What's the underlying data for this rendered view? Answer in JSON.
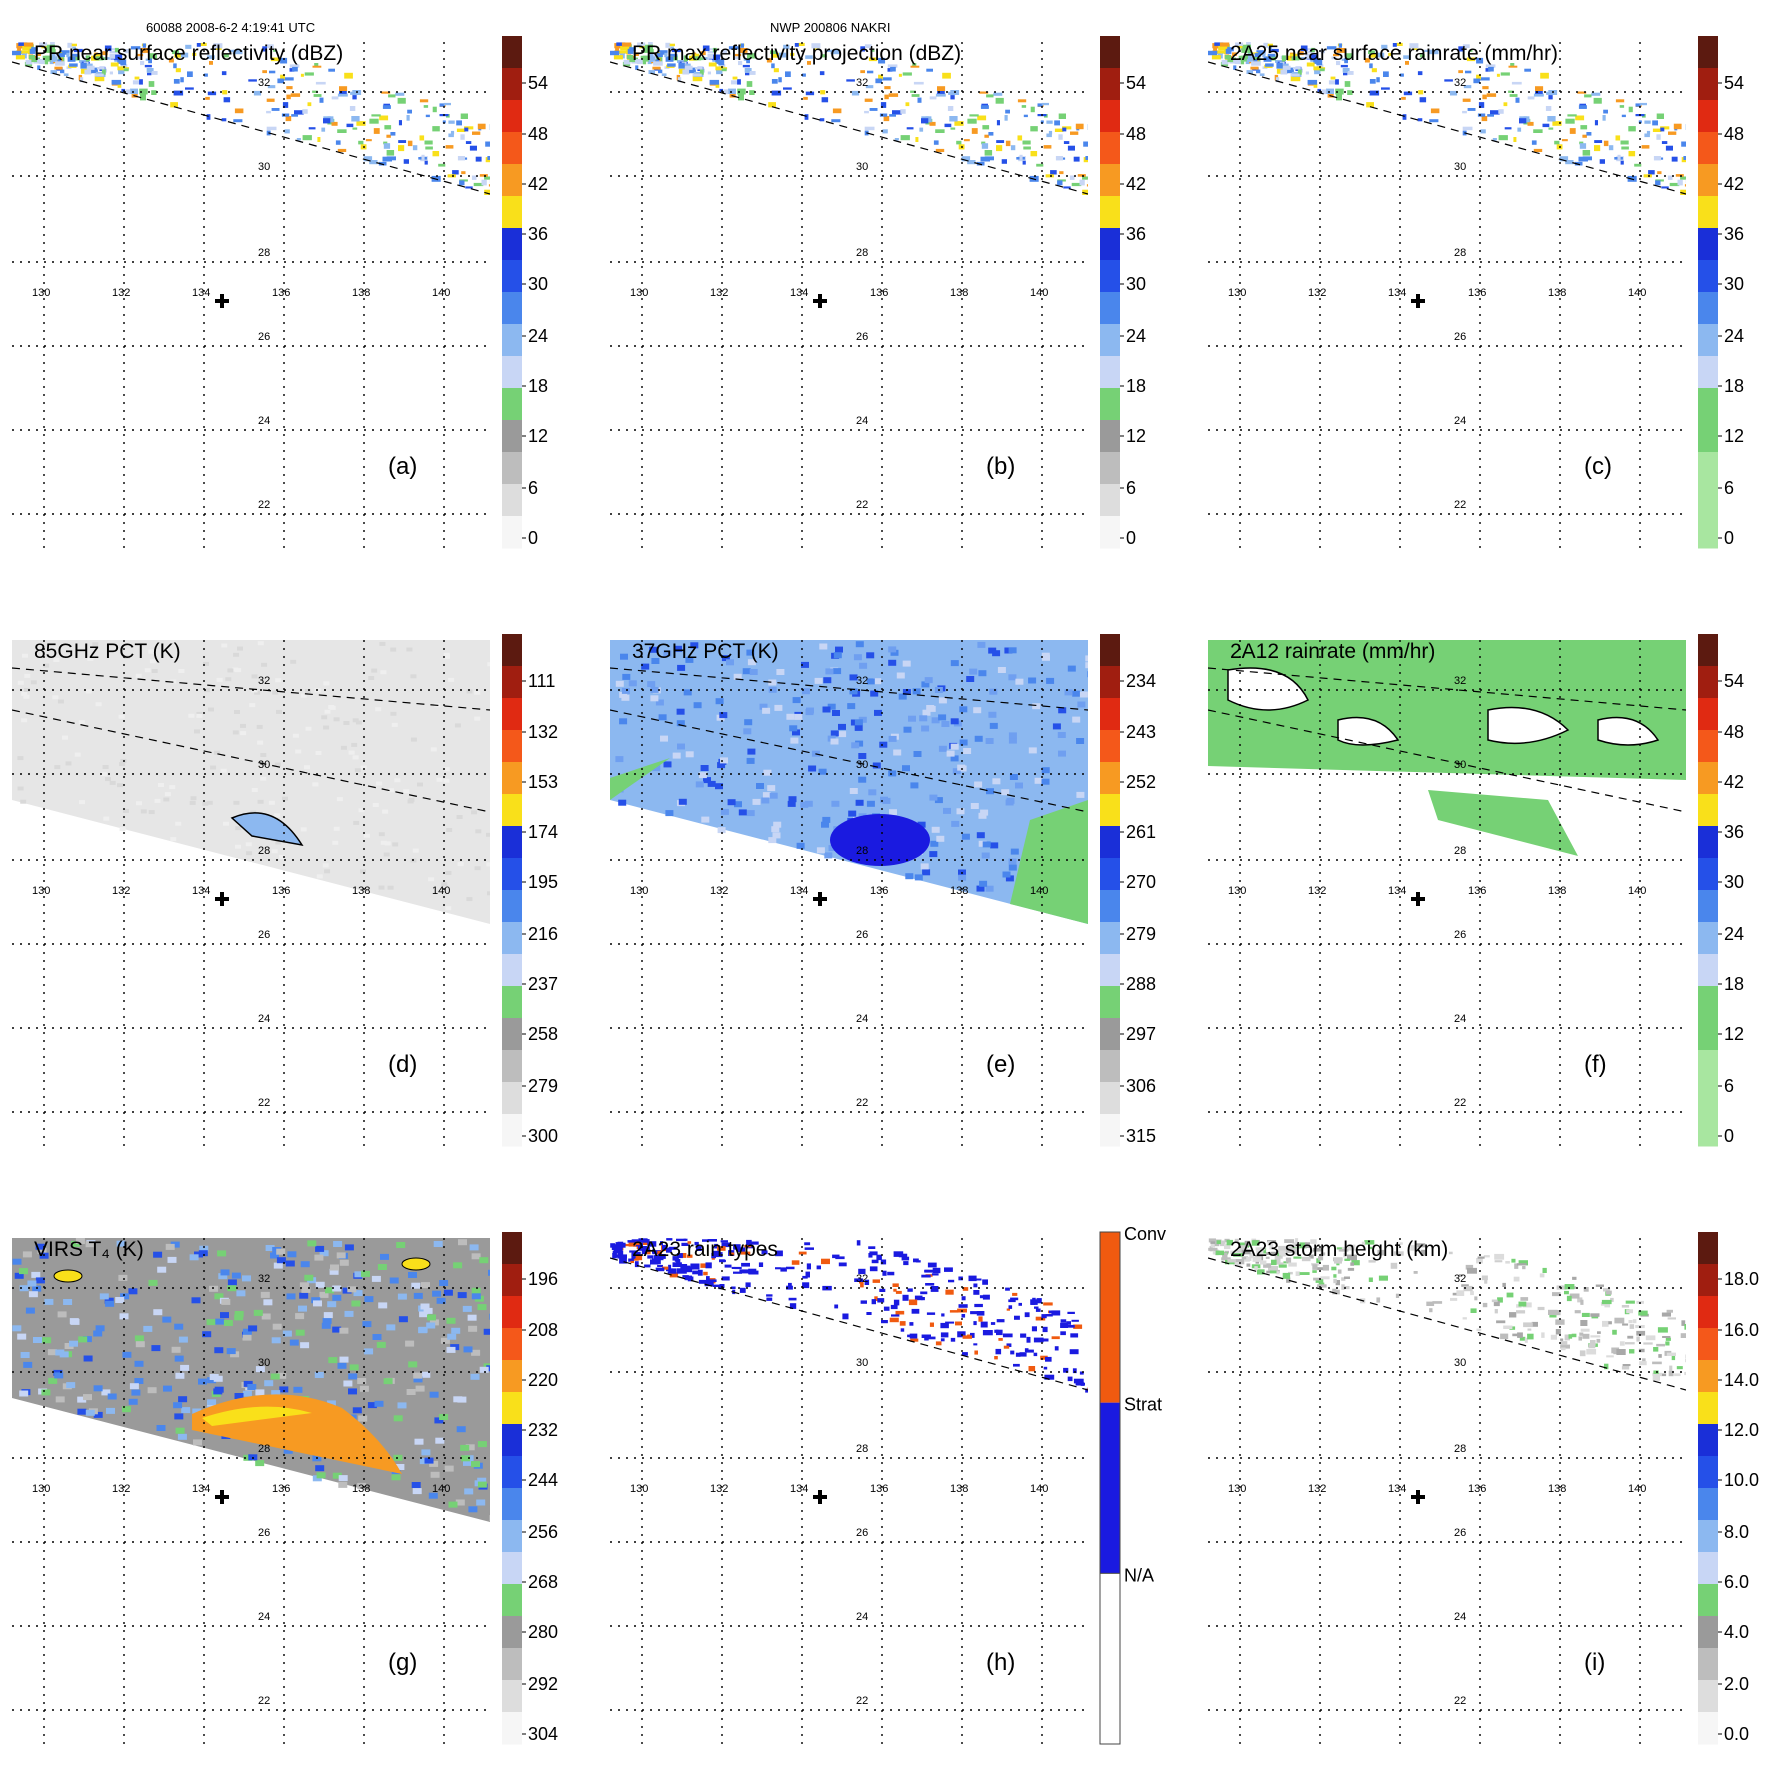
{
  "header": {
    "left": "60088 2008-6-2 4:19:41 UTC",
    "center": "NWP 200806 NAKRI"
  },
  "axis_labels": {
    "lon": [
      "130",
      "132",
      "134",
      "136",
      "138",
      "140"
    ],
    "lat": [
      "32",
      "30",
      "28",
      "26",
      "24",
      "22"
    ]
  },
  "panels": [
    {
      "id": "a",
      "title": "PR near surface reflectivity (dBZ)",
      "letter": "(a)",
      "field": "swath-north",
      "colorbar": {
        "ticks": [
          "54",
          "48",
          "42",
          "36",
          "30",
          "24",
          "18",
          "12",
          "6",
          "0"
        ],
        "colors": [
          "#5c1a10",
          "#a01e10",
          "#e02a12",
          "#f4581a",
          "#f79a22",
          "#f9e01a",
          "#1a2fd8",
          "#2550e8",
          "#4a86ec",
          "#8cb8f0",
          "#c8d6f5",
          "#76d175",
          "#9a9a9a",
          "#bdbdbd",
          "#dddddd",
          "#f6f6f6"
        ]
      }
    },
    {
      "id": "b",
      "title": "PR max reflectivity projection (dBZ)",
      "letter": "(b)",
      "field": "swath-north",
      "colorbar": {
        "ticks": [
          "54",
          "48",
          "42",
          "36",
          "30",
          "24",
          "18",
          "12",
          "6",
          "0"
        ],
        "colors": [
          "#5c1a10",
          "#a01e10",
          "#e02a12",
          "#f4581a",
          "#f79a22",
          "#f9e01a",
          "#1a2fd8",
          "#2550e8",
          "#4a86ec",
          "#8cb8f0",
          "#c8d6f5",
          "#76d175",
          "#9a9a9a",
          "#bdbdbd",
          "#dddddd",
          "#f6f6f6"
        ]
      }
    },
    {
      "id": "c",
      "title": "2A25 near surface rainrate (mm/hr)",
      "letter": "(c)",
      "field": "swath-north",
      "colorbar": {
        "ticks": [
          "54",
          "48",
          "42",
          "36",
          "30",
          "24",
          "18",
          "12",
          "6",
          "0"
        ],
        "colors": [
          "#5c1a10",
          "#a01e10",
          "#e02a12",
          "#f4581a",
          "#f79a22",
          "#f9e01a",
          "#1a2fd8",
          "#2550e8",
          "#4a86ec",
          "#8cb8f0",
          "#c8d6f5",
          "#76d175",
          "#76d175",
          "#a8e6a0",
          "#a8e6a0",
          "#a8e6a0"
        ]
      }
    },
    {
      "id": "d",
      "title": "85GHz PCT (K)",
      "letter": "(d)",
      "field": "gray-wide",
      "colorbar": {
        "ticks": [
          "111",
          "132",
          "153",
          "174",
          "195",
          "216",
          "237",
          "258",
          "279",
          "300"
        ],
        "colors": [
          "#5c1a10",
          "#a01e10",
          "#e02a12",
          "#f4581a",
          "#f79a22",
          "#f9e01a",
          "#1a2fd8",
          "#2550e8",
          "#4a86ec",
          "#8cb8f0",
          "#c8d6f5",
          "#76d175",
          "#9a9a9a",
          "#bdbdbd",
          "#dddddd",
          "#f6f6f6"
        ]
      }
    },
    {
      "id": "e",
      "title": "37GHz PCT (K)",
      "letter": "(e)",
      "field": "blue-wide",
      "colorbar": {
        "ticks": [
          "234",
          "243",
          "252",
          "261",
          "270",
          "279",
          "288",
          "297",
          "306",
          "315"
        ],
        "colors": [
          "#5c1a10",
          "#a01e10",
          "#e02a12",
          "#f4581a",
          "#f79a22",
          "#f9e01a",
          "#1a2fd8",
          "#2550e8",
          "#4a86ec",
          "#8cb8f0",
          "#c8d6f5",
          "#76d175",
          "#9a9a9a",
          "#bdbdbd",
          "#dddddd",
          "#f6f6f6"
        ]
      }
    },
    {
      "id": "f",
      "title": "2A12 rainrate (mm/hr)",
      "letter": "(f)",
      "field": "green-wide",
      "colorbar": {
        "ticks": [
          "54",
          "48",
          "42",
          "36",
          "30",
          "24",
          "18",
          "12",
          "6",
          "0"
        ],
        "colors": [
          "#5c1a10",
          "#a01e10",
          "#e02a12",
          "#f4581a",
          "#f79a22",
          "#f9e01a",
          "#1a2fd8",
          "#2550e8",
          "#4a86ec",
          "#8cb8f0",
          "#c8d6f5",
          "#76d175",
          "#76d175",
          "#a8e6a0",
          "#a8e6a0",
          "#a8e6a0"
        ]
      }
    },
    {
      "id": "g",
      "title": "VIRS T₄ (K)",
      "letter": "(g)",
      "field": "ir-wide",
      "colorbar": {
        "ticks": [
          "196",
          "208",
          "220",
          "232",
          "244",
          "256",
          "268",
          "280",
          "292",
          "304"
        ],
        "colors": [
          "#5c1a10",
          "#a01e10",
          "#e02a12",
          "#f4581a",
          "#f79a22",
          "#f9e01a",
          "#1a2fd8",
          "#2550e8",
          "#4a86ec",
          "#8cb8f0",
          "#c8d6f5",
          "#76d175",
          "#9a9a9a",
          "#bdbdbd",
          "#dddddd",
          "#f6f6f6"
        ]
      }
    },
    {
      "id": "h",
      "title": "2A23 rain types",
      "letter": "(h)",
      "field": "swath-north-types",
      "colorbar": {
        "ticks": [
          "Conv",
          "Strat",
          "N/A"
        ],
        "categorical": true,
        "colors": [
          "#f05a10",
          "#1a1ae0",
          "#ffffff"
        ]
      }
    },
    {
      "id": "i",
      "title": "2A23 storm height (km)",
      "letter": "(i)",
      "field": "swath-north-gray",
      "colorbar": {
        "ticks": [
          "18.0",
          "16.0",
          "14.0",
          "12.0",
          "10.0",
          "8.0",
          "6.0",
          "4.0",
          "2.0",
          "0.0"
        ],
        "colors": [
          "#5c1a10",
          "#a01e10",
          "#e02a12",
          "#f4581a",
          "#f79a22",
          "#f9e01a",
          "#1a2fd8",
          "#2550e8",
          "#4a86ec",
          "#8cb8f0",
          "#c8d6f5",
          "#76d175",
          "#9a9a9a",
          "#bdbdbd",
          "#dddddd",
          "#f6f6f6"
        ]
      }
    }
  ]
}
